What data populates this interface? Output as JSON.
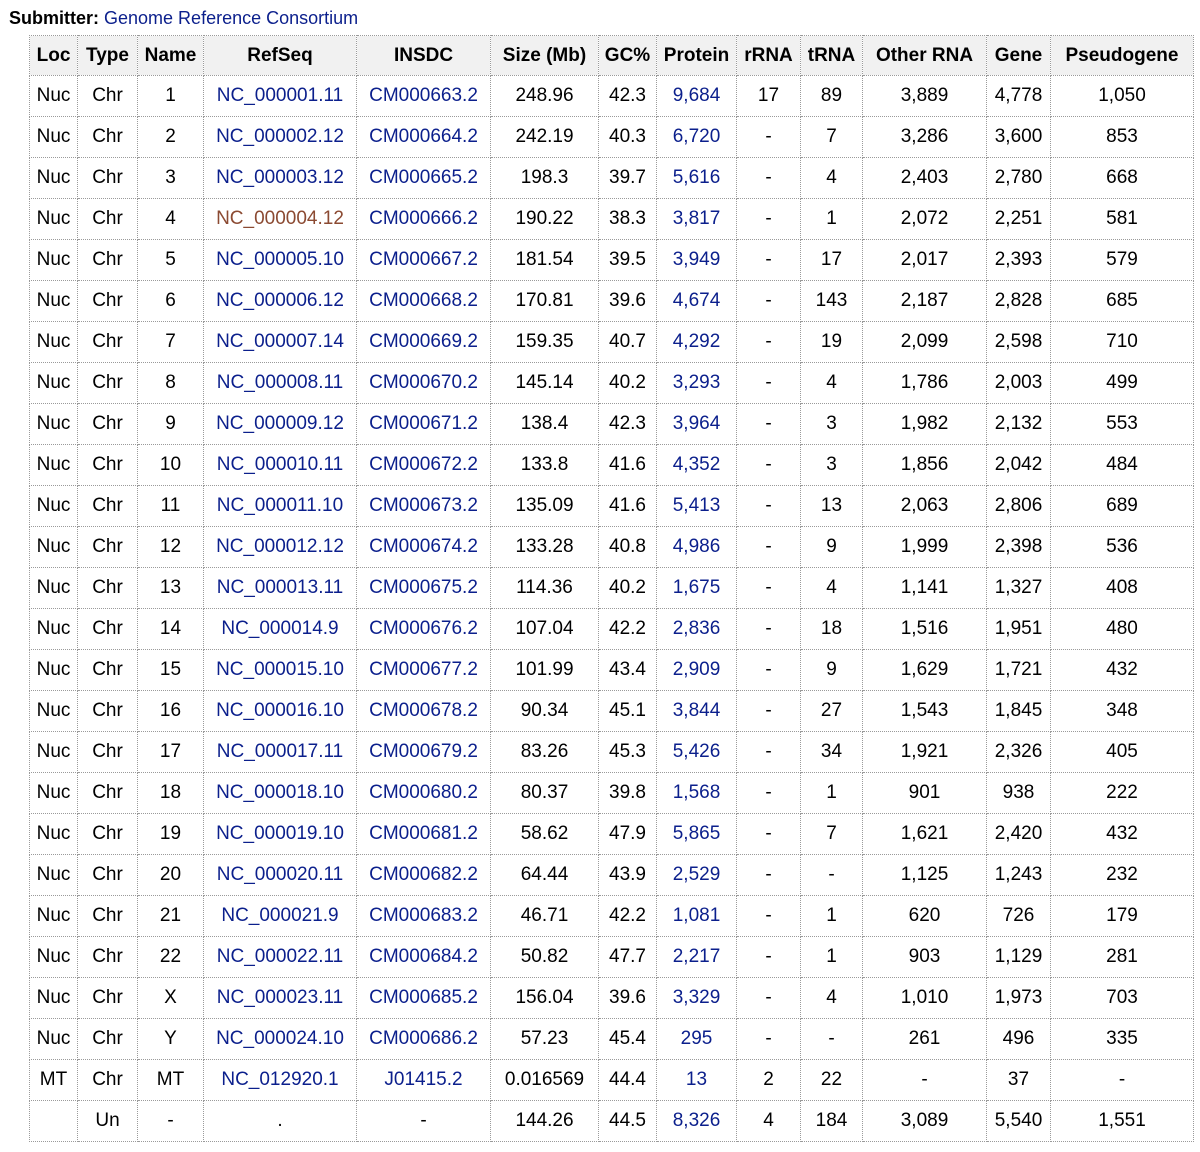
{
  "submitter": {
    "label": "Submitter:",
    "value": "Genome Reference Consortium"
  },
  "colors": {
    "link": "#0b1f8c",
    "visited_link": "#8b4a32",
    "header_bg": "#f1f1f1",
    "border": "#9a9a9a"
  },
  "table": {
    "headers": [
      "Loc",
      "Type",
      "Name",
      "RefSeq",
      "INSDC",
      "Size (Mb)",
      "GC%",
      "Protein",
      "rRNA",
      "tRNA",
      "Other RNA",
      "Gene",
      "Pseudogene"
    ],
    "rows": [
      [
        "Nuc",
        "Chr",
        "1",
        "NC_000001.11",
        "CM000663.2",
        "248.96",
        "42.3",
        "9,684",
        "17",
        "89",
        "3,889",
        "4,778",
        "1,050"
      ],
      [
        "Nuc",
        "Chr",
        "2",
        "NC_000002.12",
        "CM000664.2",
        "242.19",
        "40.3",
        "6,720",
        "-",
        "7",
        "3,286",
        "3,600",
        "853"
      ],
      [
        "Nuc",
        "Chr",
        "3",
        "NC_000003.12",
        "CM000665.2",
        "198.3",
        "39.7",
        "5,616",
        "-",
        "4",
        "2,403",
        "2,780",
        "668"
      ],
      [
        "Nuc",
        "Chr",
        "4",
        "NC_000004.12",
        "CM000666.2",
        "190.22",
        "38.3",
        "3,817",
        "-",
        "1",
        "2,072",
        "2,251",
        "581"
      ],
      [
        "Nuc",
        "Chr",
        "5",
        "NC_000005.10",
        "CM000667.2",
        "181.54",
        "39.5",
        "3,949",
        "-",
        "17",
        "2,017",
        "2,393",
        "579"
      ],
      [
        "Nuc",
        "Chr",
        "6",
        "NC_000006.12",
        "CM000668.2",
        "170.81",
        "39.6",
        "4,674",
        "-",
        "143",
        "2,187",
        "2,828",
        "685"
      ],
      [
        "Nuc",
        "Chr",
        "7",
        "NC_000007.14",
        "CM000669.2",
        "159.35",
        "40.7",
        "4,292",
        "-",
        "19",
        "2,099",
        "2,598",
        "710"
      ],
      [
        "Nuc",
        "Chr",
        "8",
        "NC_000008.11",
        "CM000670.2",
        "145.14",
        "40.2",
        "3,293",
        "-",
        "4",
        "1,786",
        "2,003",
        "499"
      ],
      [
        "Nuc",
        "Chr",
        "9",
        "NC_000009.12",
        "CM000671.2",
        "138.4",
        "42.3",
        "3,964",
        "-",
        "3",
        "1,982",
        "2,132",
        "553"
      ],
      [
        "Nuc",
        "Chr",
        "10",
        "NC_000010.11",
        "CM000672.2",
        "133.8",
        "41.6",
        "4,352",
        "-",
        "3",
        "1,856",
        "2,042",
        "484"
      ],
      [
        "Nuc",
        "Chr",
        "11",
        "NC_000011.10",
        "CM000673.2",
        "135.09",
        "41.6",
        "5,413",
        "-",
        "13",
        "2,063",
        "2,806",
        "689"
      ],
      [
        "Nuc",
        "Chr",
        "12",
        "NC_000012.12",
        "CM000674.2",
        "133.28",
        "40.8",
        "4,986",
        "-",
        "9",
        "1,999",
        "2,398",
        "536"
      ],
      [
        "Nuc",
        "Chr",
        "13",
        "NC_000013.11",
        "CM000675.2",
        "114.36",
        "40.2",
        "1,675",
        "-",
        "4",
        "1,141",
        "1,327",
        "408"
      ],
      [
        "Nuc",
        "Chr",
        "14",
        "NC_000014.9",
        "CM000676.2",
        "107.04",
        "42.2",
        "2,836",
        "-",
        "18",
        "1,516",
        "1,951",
        "480"
      ],
      [
        "Nuc",
        "Chr",
        "15",
        "NC_000015.10",
        "CM000677.2",
        "101.99",
        "43.4",
        "2,909",
        "-",
        "9",
        "1,629",
        "1,721",
        "432"
      ],
      [
        "Nuc",
        "Chr",
        "16",
        "NC_000016.10",
        "CM000678.2",
        "90.34",
        "45.1",
        "3,844",
        "-",
        "27",
        "1,543",
        "1,845",
        "348"
      ],
      [
        "Nuc",
        "Chr",
        "17",
        "NC_000017.11",
        "CM000679.2",
        "83.26",
        "45.3",
        "5,426",
        "-",
        "34",
        "1,921",
        "2,326",
        "405"
      ],
      [
        "Nuc",
        "Chr",
        "18",
        "NC_000018.10",
        "CM000680.2",
        "80.37",
        "39.8",
        "1,568",
        "-",
        "1",
        "901",
        "938",
        "222"
      ],
      [
        "Nuc",
        "Chr",
        "19",
        "NC_000019.10",
        "CM000681.2",
        "58.62",
        "47.9",
        "5,865",
        "-",
        "7",
        "1,621",
        "2,420",
        "432"
      ],
      [
        "Nuc",
        "Chr",
        "20",
        "NC_000020.11",
        "CM000682.2",
        "64.44",
        "43.9",
        "2,529",
        "-",
        "-",
        "1,125",
        "1,243",
        "232"
      ],
      [
        "Nuc",
        "Chr",
        "21",
        "NC_000021.9",
        "CM000683.2",
        "46.71",
        "42.2",
        "1,081",
        "-",
        "1",
        "620",
        "726",
        "179"
      ],
      [
        "Nuc",
        "Chr",
        "22",
        "NC_000022.11",
        "CM000684.2",
        "50.82",
        "47.7",
        "2,217",
        "-",
        "1",
        "903",
        "1,129",
        "281"
      ],
      [
        "Nuc",
        "Chr",
        "X",
        "NC_000023.11",
        "CM000685.2",
        "156.04",
        "39.6",
        "3,329",
        "-",
        "4",
        "1,010",
        "1,973",
        "703"
      ],
      [
        "Nuc",
        "Chr",
        "Y",
        "NC_000024.10",
        "CM000686.2",
        "57.23",
        "45.4",
        "295",
        "-",
        "-",
        "261",
        "496",
        "335"
      ],
      [
        "MT",
        "Chr",
        "MT",
        "NC_012920.1",
        "J01415.2",
        "0.016569",
        "44.4",
        "13",
        "2",
        "22",
        "-",
        "37",
        "-"
      ],
      [
        "",
        "Un",
        "-",
        ".",
        "-",
        "144.26",
        "44.5",
        "8,326",
        "4",
        "184",
        "3,089",
        "5,540",
        "1,551"
      ]
    ],
    "visited_refseq": "NC_000004.12"
  }
}
